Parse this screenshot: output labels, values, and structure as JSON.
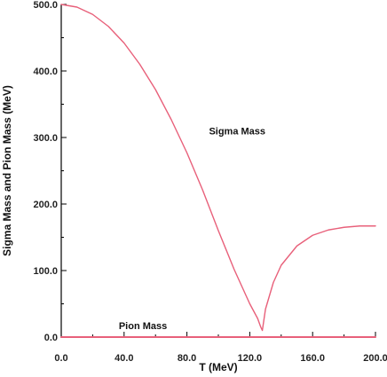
{
  "chart_data": {
    "type": "line",
    "xlabel": "T (MeV)",
    "ylabel": "Sigma Mass and Pion Mass (MeV)",
    "xlim": [
      0,
      200
    ],
    "ylim": [
      0,
      500
    ],
    "x_ticks": [
      "0.0",
      "40.0",
      "80.0",
      "120.0",
      "160.0",
      "200.0"
    ],
    "y_ticks": [
      "0.0",
      "100.0",
      "200.0",
      "300.0",
      "400.0",
      "500.0"
    ],
    "grid": false,
    "line_color": "#e8607a",
    "series": [
      {
        "label": "Sigma Mass",
        "points": [
          [
            0,
            500
          ],
          [
            10,
            496
          ],
          [
            20,
            485
          ],
          [
            30,
            467
          ],
          [
            40,
            442
          ],
          [
            50,
            410
          ],
          [
            60,
            372
          ],
          [
            70,
            327
          ],
          [
            80,
            277
          ],
          [
            90,
            221
          ],
          [
            100,
            160
          ],
          [
            110,
            102
          ],
          [
            120,
            50
          ],
          [
            125,
            28
          ],
          [
            127,
            15
          ],
          [
            128,
            10
          ],
          [
            130,
            42
          ],
          [
            135,
            82
          ],
          [
            140,
            108
          ],
          [
            150,
            137
          ],
          [
            160,
            153
          ],
          [
            170,
            161
          ],
          [
            180,
            165
          ],
          [
            190,
            167
          ],
          [
            200,
            167
          ]
        ]
      },
      {
        "label": "Pion Mass",
        "points": [
          [
            0,
            0
          ],
          [
            128,
            0
          ],
          [
            200,
            0
          ]
        ]
      }
    ],
    "annotations": [
      {
        "text": "Sigma Mass",
        "x": 112,
        "y": 305
      },
      {
        "text": "Pion Mass",
        "x": 52,
        "y": 12
      }
    ]
  }
}
